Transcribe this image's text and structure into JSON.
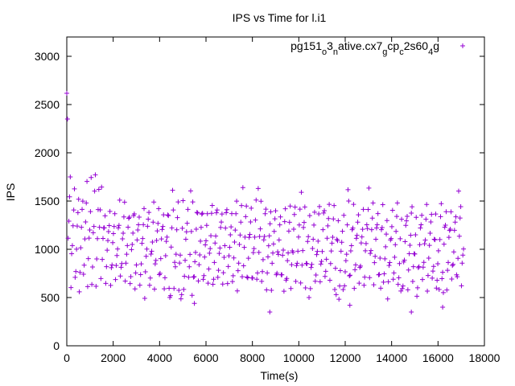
{
  "chart_data": {
    "type": "scatter",
    "title": "IPS vs Time for l.i1",
    "xlabel": "Time(s)",
    "ylabel": "IPS",
    "xlim": [
      0,
      18000
    ],
    "ylim": [
      0,
      3200
    ],
    "xticks": [
      0,
      2000,
      4000,
      6000,
      8000,
      10000,
      12000,
      14000,
      16000,
      18000
    ],
    "yticks": [
      0,
      500,
      1000,
      1500,
      2000,
      2500,
      3000
    ],
    "grid": false,
    "legend_position": "top-right",
    "legend": {
      "parts": [
        {
          "text": "pg151",
          "sub": false
        },
        {
          "text": "o",
          "sub": true
        },
        {
          "text": "3",
          "sub": false
        },
        {
          "text": "n",
          "sub": true
        },
        {
          "text": "ative.cx7",
          "sub": false
        },
        {
          "text": "g",
          "sub": true
        },
        {
          "text": "cp",
          "sub": false
        },
        {
          "text": "c",
          "sub": true
        },
        {
          "text": "2s60",
          "sub": false
        },
        {
          "text": "4",
          "sub": true
        },
        {
          "text": "g",
          "sub": false
        }
      ]
    },
    "series": [
      {
        "marker": "+",
        "color": "#9400d3",
        "time_range": [
          0,
          17100
        ],
        "sample_interval_s": 30,
        "ips_initial_peak": 2650,
        "ips_warmup_range": [
          650,
          2050
        ],
        "ips_steady_range": [
          480,
          1650
        ],
        "ips_steady_typical": [
          650,
          1550
        ],
        "outliers": [
          {
            "x": 8750,
            "y": 350
          },
          {
            "x": 14850,
            "y": 350
          },
          {
            "x": 16200,
            "y": 400
          },
          {
            "x": 12200,
            "y": 420
          },
          {
            "x": 5500,
            "y": 440
          }
        ]
      }
    ]
  }
}
